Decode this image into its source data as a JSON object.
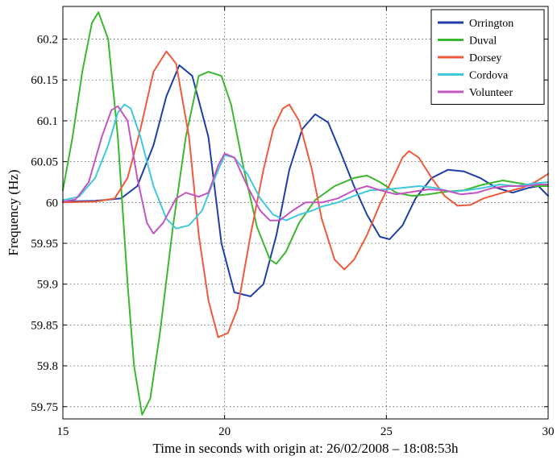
{
  "chart_data": {
    "type": "line",
    "title": "",
    "xlabel": "Time in seconds with origin at: 26/02/2008 – 18:08:53h",
    "ylabel": "Frequency (Hz)",
    "xlim": [
      15,
      30
    ],
    "ylim": [
      59.735,
      60.24
    ],
    "x_ticks": [
      15,
      20,
      25,
      30
    ],
    "x_tick_labels": [
      "15",
      "20",
      "25",
      "30"
    ],
    "y_ticks": [
      59.75,
      59.8,
      59.85,
      59.9,
      59.95,
      60.0,
      60.05,
      60.1,
      60.15,
      60.2
    ],
    "y_tick_labels": [
      "59.75",
      "59.8",
      "59.85",
      "59.9",
      "59.95",
      "60",
      "60.05",
      "60.1",
      "60.15",
      "60.2"
    ],
    "grid": true,
    "legend_position": "top-right",
    "series": [
      {
        "name": "Orrington",
        "color": "#1f3fa8",
        "points": [
          [
            15.0,
            60.001
          ],
          [
            16.0,
            60.002
          ],
          [
            16.8,
            60.005
          ],
          [
            17.3,
            60.02
          ],
          [
            17.8,
            60.07
          ],
          [
            18.2,
            60.13
          ],
          [
            18.6,
            60.168
          ],
          [
            19.0,
            60.155
          ],
          [
            19.5,
            60.08
          ],
          [
            19.9,
            59.95
          ],
          [
            20.3,
            59.89
          ],
          [
            20.8,
            59.885
          ],
          [
            21.2,
            59.9
          ],
          [
            21.6,
            59.96
          ],
          [
            22.0,
            60.04
          ],
          [
            22.4,
            60.09
          ],
          [
            22.8,
            60.108
          ],
          [
            23.2,
            60.098
          ],
          [
            23.6,
            60.06
          ],
          [
            24.0,
            60.02
          ],
          [
            24.4,
            59.985
          ],
          [
            24.8,
            59.958
          ],
          [
            25.1,
            59.955
          ],
          [
            25.5,
            59.972
          ],
          [
            25.9,
            60.005
          ],
          [
            26.4,
            60.03
          ],
          [
            26.9,
            60.04
          ],
          [
            27.4,
            60.038
          ],
          [
            27.9,
            60.03
          ],
          [
            28.4,
            60.018
          ],
          [
            28.9,
            60.012
          ],
          [
            29.4,
            60.018
          ],
          [
            29.7,
            60.02
          ],
          [
            30.0,
            60.008
          ]
        ]
      },
      {
        "name": "Duval",
        "color": "#3cb82e",
        "points": [
          [
            15.0,
            60.015
          ],
          [
            15.3,
            60.08
          ],
          [
            15.6,
            60.16
          ],
          [
            15.9,
            60.22
          ],
          [
            16.1,
            60.233
          ],
          [
            16.4,
            60.2
          ],
          [
            16.7,
            60.08
          ],
          [
            17.0,
            59.9
          ],
          [
            17.2,
            59.8
          ],
          [
            17.45,
            59.74
          ],
          [
            17.7,
            59.76
          ],
          [
            18.0,
            59.84
          ],
          [
            18.4,
            59.97
          ],
          [
            18.8,
            60.08
          ],
          [
            19.2,
            60.155
          ],
          [
            19.5,
            60.16
          ],
          [
            19.9,
            60.155
          ],
          [
            20.2,
            60.12
          ],
          [
            20.6,
            60.04
          ],
          [
            21.0,
            59.97
          ],
          [
            21.4,
            59.93
          ],
          [
            21.6,
            59.925
          ],
          [
            21.9,
            59.94
          ],
          [
            22.3,
            59.975
          ],
          [
            22.8,
            60.003
          ],
          [
            23.4,
            60.02
          ],
          [
            24.0,
            60.03
          ],
          [
            24.4,
            60.033
          ],
          [
            24.8,
            60.025
          ],
          [
            25.3,
            60.012
          ],
          [
            25.8,
            60.008
          ],
          [
            26.3,
            60.01
          ],
          [
            26.8,
            60.013
          ],
          [
            27.4,
            60.015
          ],
          [
            28.0,
            60.022
          ],
          [
            28.6,
            60.027
          ],
          [
            29.2,
            60.023
          ],
          [
            29.6,
            60.02
          ],
          [
            30.0,
            60.02
          ]
        ]
      },
      {
        "name": "Dorsey",
        "color": "#f05a3c",
        "points": [
          [
            15.0,
            60.0
          ],
          [
            16.0,
            60.001
          ],
          [
            16.6,
            60.005
          ],
          [
            17.0,
            60.03
          ],
          [
            17.4,
            60.09
          ],
          [
            17.8,
            60.16
          ],
          [
            18.2,
            60.185
          ],
          [
            18.5,
            60.17
          ],
          [
            18.9,
            60.08
          ],
          [
            19.2,
            59.96
          ],
          [
            19.5,
            59.88
          ],
          [
            19.8,
            59.835
          ],
          [
            20.1,
            59.84
          ],
          [
            20.4,
            59.87
          ],
          [
            20.8,
            59.96
          ],
          [
            21.2,
            60.04
          ],
          [
            21.5,
            60.09
          ],
          [
            21.8,
            60.115
          ],
          [
            22.0,
            60.12
          ],
          [
            22.3,
            60.1
          ],
          [
            22.7,
            60.04
          ],
          [
            23.0,
            59.98
          ],
          [
            23.4,
            59.93
          ],
          [
            23.7,
            59.918
          ],
          [
            24.0,
            59.93
          ],
          [
            24.4,
            59.96
          ],
          [
            24.8,
            59.998
          ],
          [
            25.2,
            60.03
          ],
          [
            25.5,
            60.055
          ],
          [
            25.7,
            60.063
          ],
          [
            26.0,
            60.055
          ],
          [
            26.4,
            60.03
          ],
          [
            26.8,
            60.008
          ],
          [
            27.2,
            59.996
          ],
          [
            27.6,
            59.997
          ],
          [
            28.0,
            60.005
          ],
          [
            28.6,
            60.012
          ],
          [
            29.2,
            60.018
          ],
          [
            29.6,
            60.025
          ],
          [
            30.0,
            60.035
          ]
        ]
      },
      {
        "name": "Cordova",
        "color": "#3fc8e0",
        "points": [
          [
            15.0,
            60.003
          ],
          [
            15.5,
            60.007
          ],
          [
            16.0,
            60.03
          ],
          [
            16.4,
            60.07
          ],
          [
            16.7,
            60.11
          ],
          [
            16.9,
            60.12
          ],
          [
            17.1,
            60.115
          ],
          [
            17.4,
            60.08
          ],
          [
            17.8,
            60.02
          ],
          [
            18.2,
            59.98
          ],
          [
            18.5,
            59.968
          ],
          [
            18.9,
            59.972
          ],
          [
            19.3,
            59.99
          ],
          [
            19.7,
            60.03
          ],
          [
            20.0,
            60.058
          ],
          [
            20.3,
            60.055
          ],
          [
            20.7,
            60.035
          ],
          [
            21.1,
            60.005
          ],
          [
            21.5,
            59.985
          ],
          [
            21.9,
            59.978
          ],
          [
            22.3,
            59.985
          ],
          [
            22.7,
            59.99
          ],
          [
            23.0,
            59.995
          ],
          [
            23.5,
            60.0
          ],
          [
            24.0,
            60.008
          ],
          [
            24.5,
            60.015
          ],
          [
            25.0,
            60.016
          ],
          [
            25.5,
            60.018
          ],
          [
            26.0,
            60.02
          ],
          [
            26.5,
            60.018
          ],
          [
            27.0,
            60.013
          ],
          [
            27.5,
            60.015
          ],
          [
            28.0,
            60.018
          ],
          [
            28.5,
            60.022
          ],
          [
            29.0,
            60.02
          ],
          [
            29.5,
            60.023
          ],
          [
            30.0,
            60.025
          ]
        ]
      },
      {
        "name": "Volunteer",
        "color": "#c455c0",
        "points": [
          [
            15.0,
            60.001
          ],
          [
            15.4,
            60.004
          ],
          [
            15.8,
            60.025
          ],
          [
            16.2,
            60.08
          ],
          [
            16.5,
            60.113
          ],
          [
            16.7,
            60.118
          ],
          [
            17.0,
            60.1
          ],
          [
            17.3,
            60.03
          ],
          [
            17.6,
            59.975
          ],
          [
            17.8,
            59.962
          ],
          [
            18.1,
            59.975
          ],
          [
            18.5,
            60.005
          ],
          [
            18.8,
            60.012
          ],
          [
            19.2,
            60.007
          ],
          [
            19.5,
            60.012
          ],
          [
            19.8,
            60.045
          ],
          [
            20.0,
            60.06
          ],
          [
            20.3,
            60.055
          ],
          [
            20.7,
            60.02
          ],
          [
            21.1,
            59.99
          ],
          [
            21.4,
            59.978
          ],
          [
            21.7,
            59.978
          ],
          [
            22.1,
            59.99
          ],
          [
            22.5,
            60.0
          ],
          [
            23.0,
            60.0
          ],
          [
            23.5,
            60.005
          ],
          [
            24.0,
            60.015
          ],
          [
            24.4,
            60.02
          ],
          [
            24.8,
            60.015
          ],
          [
            25.3,
            60.01
          ],
          [
            25.8,
            60.013
          ],
          [
            26.3,
            60.016
          ],
          [
            26.8,
            60.015
          ],
          [
            27.3,
            60.01
          ],
          [
            27.8,
            60.012
          ],
          [
            28.3,
            60.018
          ],
          [
            28.8,
            60.02
          ],
          [
            29.3,
            60.02
          ],
          [
            29.7,
            60.022
          ],
          [
            30.0,
            60.022
          ]
        ]
      }
    ]
  }
}
